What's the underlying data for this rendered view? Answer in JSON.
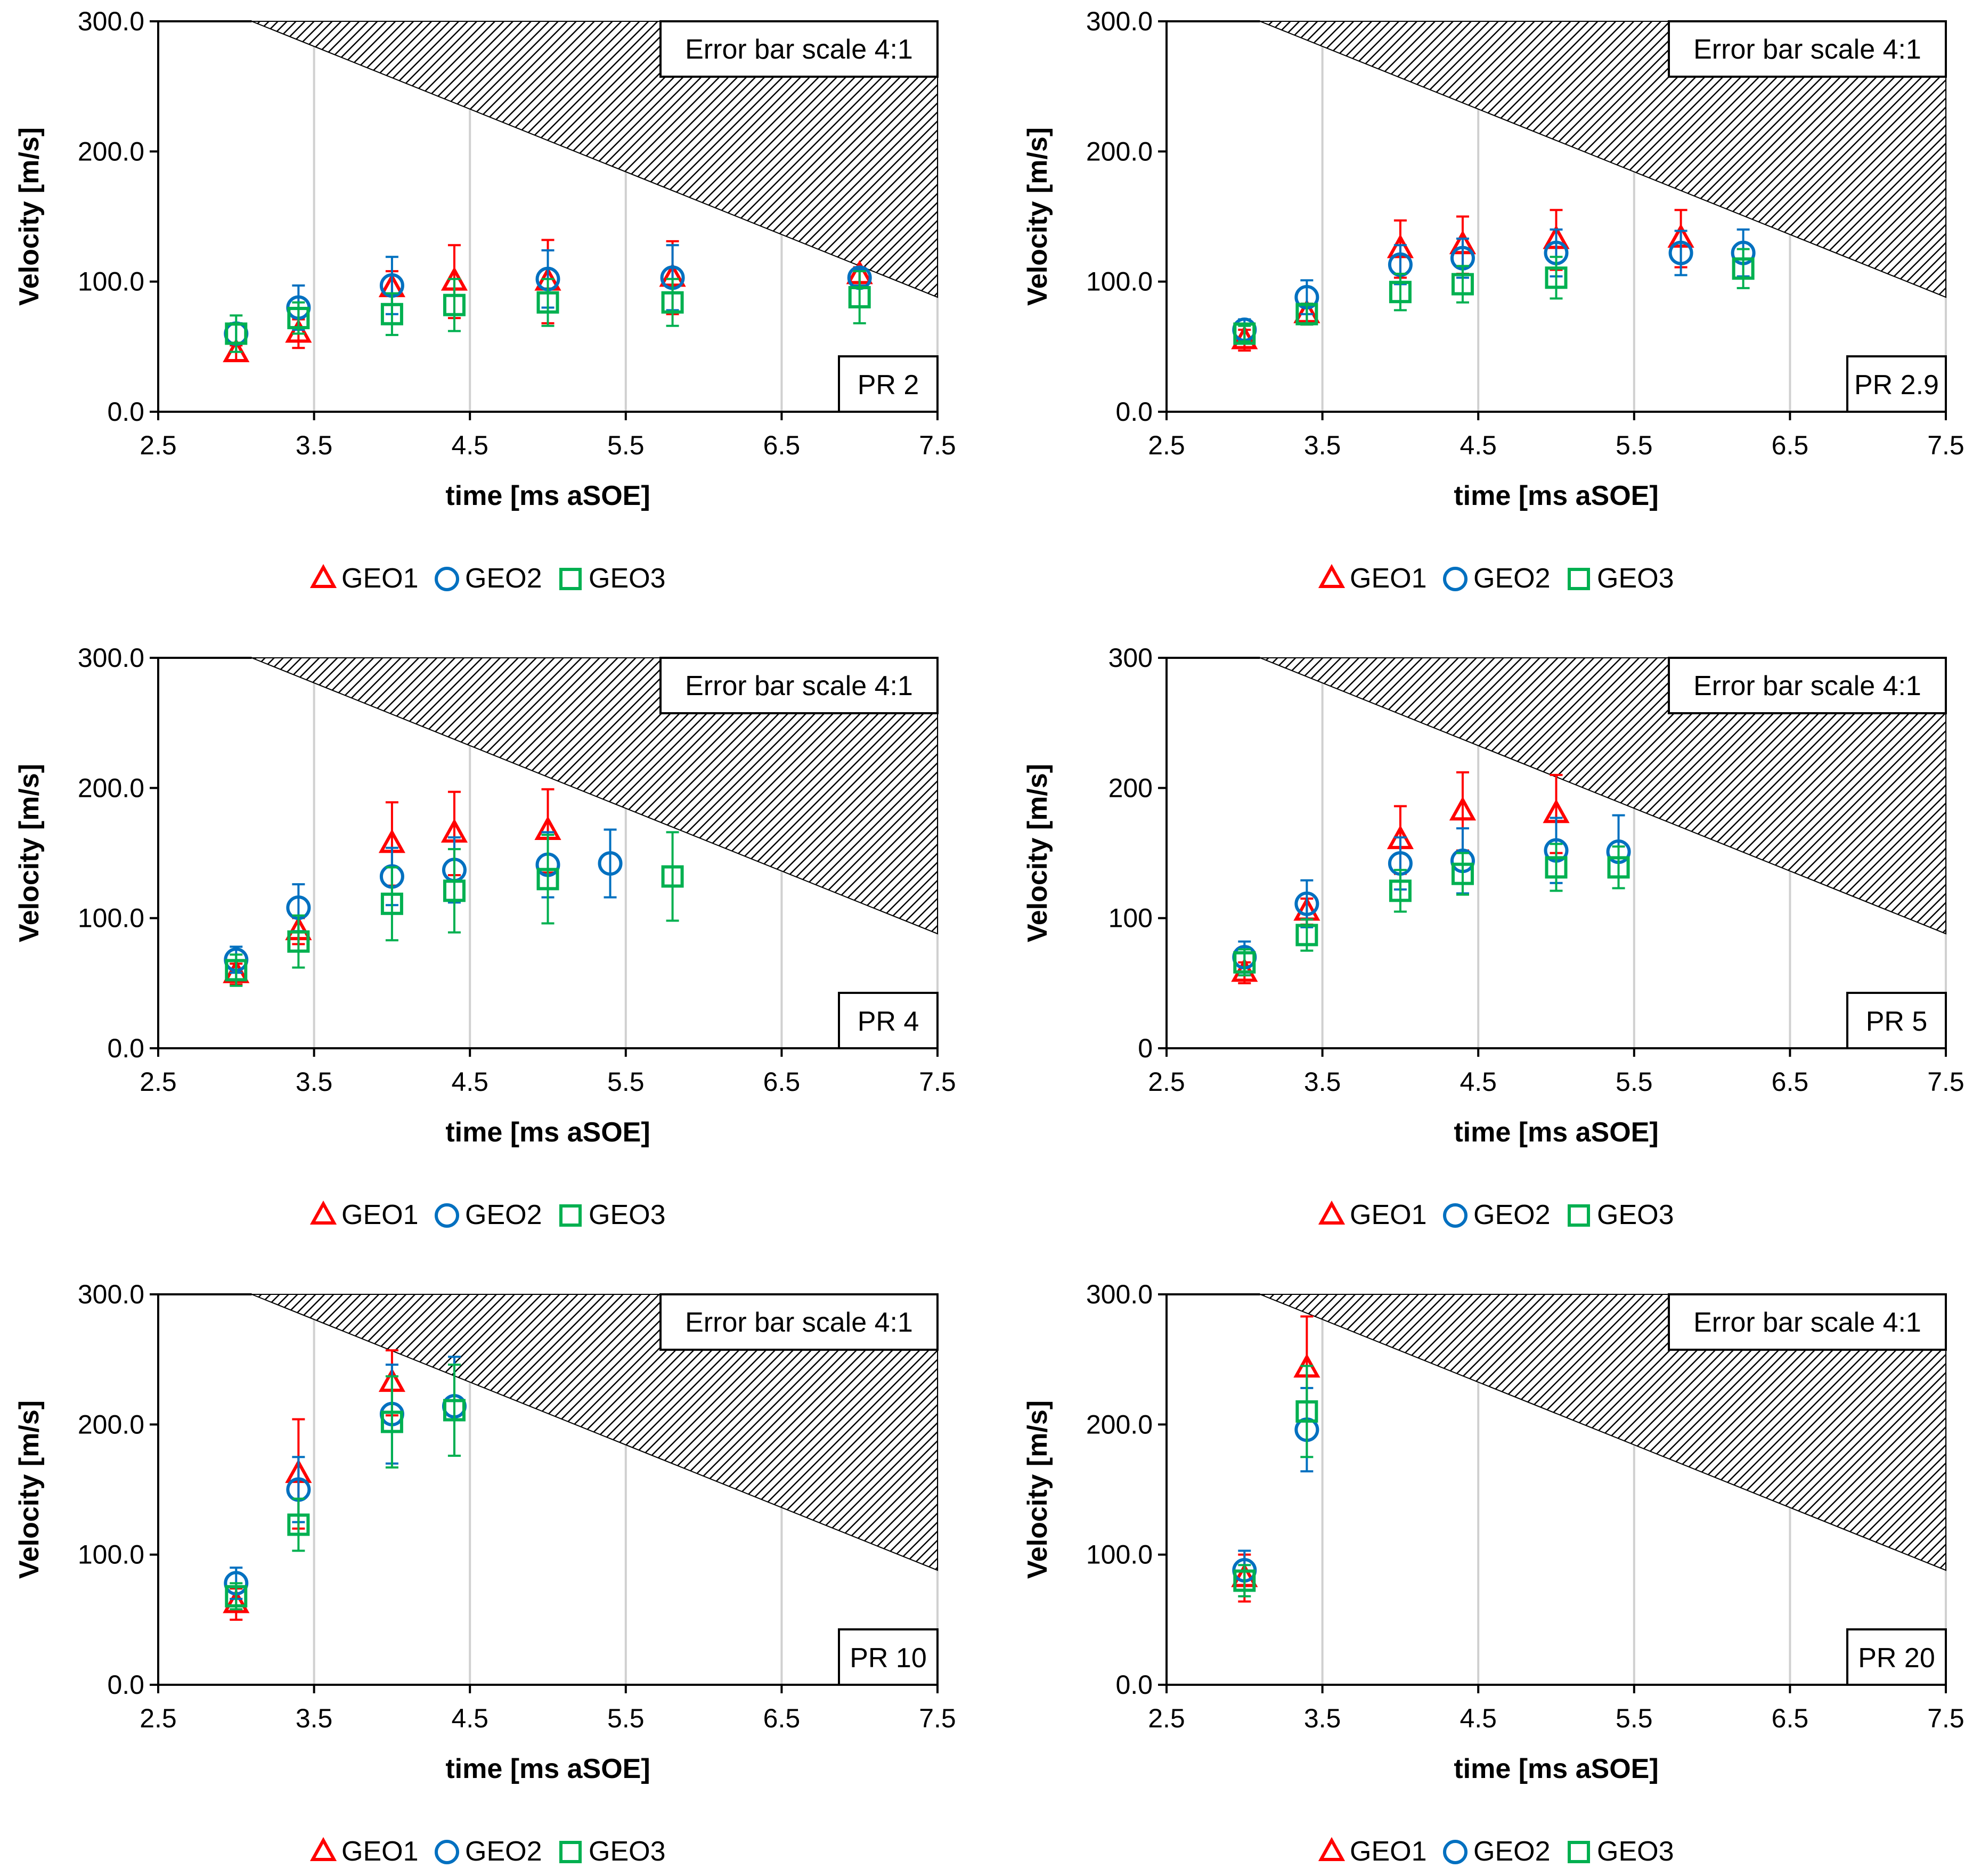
{
  "colors": {
    "GEO1": "#ff0000",
    "GEO2": "#0070c0",
    "GEO3": "#00b050",
    "grid": "#d0d0d0"
  },
  "legend": [
    {
      "name": "GEO1",
      "marker": "triangle"
    },
    {
      "name": "GEO2",
      "marker": "circle"
    },
    {
      "name": "GEO3",
      "marker": "square"
    }
  ],
  "chart_data": [
    {
      "type": "scatter",
      "panel_label": "PR 2",
      "annotation": "Error bar scale 4:1",
      "xlabel": "time [ms aSOE]",
      "ylabel": "Velocity [m/s]",
      "xlim": [
        2.5,
        7.5
      ],
      "ylim": [
        0,
        300
      ],
      "xticks": [
        "2.5",
        "3.5",
        "4.5",
        "5.5",
        "6.5",
        "7.5"
      ],
      "yticks": [
        "0.0",
        "100.0",
        "200.0",
        "300.0"
      ],
      "hatched_region": {
        "top_y": 300,
        "line_from": [
          3.1,
          300
        ],
        "line_to": [
          7.5,
          88
        ]
      },
      "series": [
        {
          "name": "GEO1",
          "points": [
            [
              3.0,
              45,
              6
            ],
            [
              3.4,
              60,
              11
            ],
            [
              4.0,
              95,
              13
            ],
            [
              4.4,
              100,
              28
            ],
            [
              5.0,
              100,
              32
            ],
            [
              5.8,
              103,
              28
            ],
            [
              7.0,
              105,
              6
            ]
          ]
        },
        {
          "name": "GEO2",
          "points": [
            [
              3.0,
              60,
              8
            ],
            [
              3.4,
              80,
              17
            ],
            [
              4.0,
              97,
              22
            ],
            [
              5.0,
              102,
              22
            ],
            [
              5.8,
              103,
              25
            ],
            [
              7.0,
              103,
              6
            ]
          ]
        },
        {
          "name": "GEO3",
          "points": [
            [
              3.0,
              60,
              14
            ],
            [
              3.4,
              72,
              12
            ],
            [
              4.0,
              75,
              16
            ],
            [
              4.4,
              82,
              20
            ],
            [
              5.0,
              84,
              18
            ],
            [
              5.8,
              84,
              18
            ],
            [
              7.0,
              88,
              20
            ]
          ]
        }
      ]
    },
    {
      "type": "scatter",
      "panel_label": "PR 2.9",
      "annotation": "Error bar scale 4:1",
      "xlabel": "time [ms aSOE]",
      "ylabel": "Velocity [m/s]",
      "xlim": [
        2.5,
        7.5
      ],
      "ylim": [
        0,
        300
      ],
      "xticks": [
        "2.5",
        "3.5",
        "4.5",
        "5.5",
        "6.5",
        "7.5"
      ],
      "yticks": [
        "0.0",
        "100.0",
        "200.0",
        "300.0"
      ],
      "hatched_region": {
        "top_y": 300,
        "line_from": [
          3.1,
          300
        ],
        "line_to": [
          7.5,
          88
        ]
      },
      "series": [
        {
          "name": "GEO1",
          "points": [
            [
              3.0,
              55,
              8
            ],
            [
              3.4,
              75,
              8
            ],
            [
              4.0,
              125,
              22
            ],
            [
              4.4,
              128,
              22
            ],
            [
              5.0,
              132,
              23
            ],
            [
              5.8,
              133,
              22
            ]
          ]
        },
        {
          "name": "GEO2",
          "points": [
            [
              3.0,
              63,
              8
            ],
            [
              3.4,
              88,
              13
            ],
            [
              4.0,
              113,
              15
            ],
            [
              4.4,
              118,
              15
            ],
            [
              5.0,
              122,
              18
            ],
            [
              5.8,
              122,
              17
            ],
            [
              6.2,
              122,
              18
            ]
          ]
        },
        {
          "name": "GEO3",
          "points": [
            [
              3.0,
              60,
              6
            ],
            [
              3.4,
              75,
              8
            ],
            [
              4.0,
              92,
              14
            ],
            [
              4.4,
              98,
              14
            ],
            [
              5.0,
              103,
              16
            ],
            [
              6.2,
              110,
              15
            ]
          ]
        }
      ]
    },
    {
      "type": "scatter",
      "panel_label": "PR 4",
      "annotation": "Error bar scale 4:1",
      "xlabel": "time [ms aSOE]",
      "ylabel": "Velocity [m/s]",
      "xlim": [
        2.5,
        7.5
      ],
      "ylim": [
        0,
        300
      ],
      "xticks": [
        "2.5",
        "3.5",
        "4.5",
        "5.5",
        "6.5",
        "7.5"
      ],
      "yticks": [
        "0.0",
        "100.0",
        "200.0",
        "300.0"
      ],
      "hatched_region": {
        "top_y": 300,
        "line_from": [
          3.1,
          300
        ],
        "line_to": [
          7.5,
          88
        ]
      },
      "series": [
        {
          "name": "GEO1",
          "points": [
            [
              3.0,
              57,
              8
            ],
            [
              3.4,
              90,
              10
            ],
            [
              4.0,
              157,
              32
            ],
            [
              4.4,
              165,
              32
            ],
            [
              5.0,
              167,
              32
            ]
          ]
        },
        {
          "name": "GEO2",
          "points": [
            [
              3.0,
              68,
              10
            ],
            [
              3.4,
              108,
              18
            ],
            [
              4.0,
              132,
              22
            ],
            [
              4.4,
              137,
              25
            ],
            [
              5.0,
              141,
              25
            ],
            [
              5.4,
              142,
              26
            ]
          ]
        },
        {
          "name": "GEO3",
          "points": [
            [
              3.0,
              60,
              12
            ],
            [
              3.4,
              82,
              20
            ],
            [
              4.0,
              111,
              28
            ],
            [
              4.4,
              121,
              32
            ],
            [
              5.0,
              130,
              34
            ],
            [
              5.8,
              132,
              34
            ]
          ]
        }
      ]
    },
    {
      "type": "scatter",
      "panel_label": "PR 5",
      "annotation": "Error bar scale 4:1",
      "xlabel": "time [ms aSOE]",
      "ylabel": "Velocity [m/s]",
      "xlim": [
        2.5,
        7.5
      ],
      "ylim": [
        0,
        300
      ],
      "xticks": [
        "2.5",
        "3.5",
        "4.5",
        "5.5",
        "6.5",
        "7.5"
      ],
      "yticks": [
        "0",
        "100",
        "200",
        "300"
      ],
      "hatched_region": {
        "top_y": 300,
        "line_from": [
          3.1,
          300
        ],
        "line_to": [
          7.5,
          88
        ]
      },
      "series": [
        {
          "name": "GEO1",
          "points": [
            [
              3.0,
              58,
              8
            ],
            [
              3.4,
              105,
              10
            ],
            [
              4.0,
              160,
              26
            ],
            [
              4.4,
              182,
              30
            ],
            [
              5.0,
              180,
              30
            ]
          ]
        },
        {
          "name": "GEO2",
          "points": [
            [
              3.0,
              70,
              12
            ],
            [
              3.4,
              111,
              18
            ],
            [
              4.0,
              142,
              20
            ],
            [
              4.4,
              144,
              25
            ],
            [
              5.0,
              152,
              25
            ],
            [
              5.4,
              151,
              28
            ]
          ]
        },
        {
          "name": "GEO3",
          "points": [
            [
              3.0,
              66,
              10
            ],
            [
              3.4,
              87,
              12
            ],
            [
              4.0,
              121,
              16
            ],
            [
              4.4,
              134,
              16
            ],
            [
              5.0,
              139,
              18
            ],
            [
              5.4,
              139,
              16
            ]
          ]
        }
      ]
    },
    {
      "type": "scatter",
      "panel_label": "PR 10",
      "annotation": "Error bar scale 4:1",
      "xlabel": "time [ms aSOE]",
      "ylabel": "Velocity [m/s]",
      "xlim": [
        2.5,
        7.5
      ],
      "ylim": [
        0,
        300
      ],
      "xticks": [
        "2.5",
        "3.5",
        "4.5",
        "5.5",
        "6.5",
        "7.5"
      ],
      "yticks": [
        "0.0",
        "100.0",
        "200.0",
        "300.0"
      ],
      "hatched_region": {
        "top_y": 300,
        "line_from": [
          3.1,
          300
        ],
        "line_to": [
          7.5,
          88
        ]
      },
      "series": [
        {
          "name": "GEO1",
          "points": [
            [
              3.0,
              62,
              12
            ],
            [
              3.4,
              162,
              42
            ],
            [
              4.0,
              232,
              25
            ]
          ]
        },
        {
          "name": "GEO2",
          "points": [
            [
              3.0,
              78,
              12
            ],
            [
              3.4,
              150,
              25
            ],
            [
              4.0,
              208,
              38
            ],
            [
              4.4,
              214,
              38
            ]
          ]
        },
        {
          "name": "GEO3",
          "points": [
            [
              3.0,
              68,
              10
            ],
            [
              3.4,
              123,
              20
            ],
            [
              4.0,
              202,
              35
            ],
            [
              4.4,
              211,
              35
            ]
          ]
        }
      ]
    },
    {
      "type": "scatter",
      "panel_label": "PR 20",
      "annotation": "Error bar scale 4:1",
      "xlabel": "time [ms aSOE]",
      "ylabel": "Velocity [m/s]",
      "xlim": [
        2.5,
        7.5
      ],
      "ylim": [
        0,
        300
      ],
      "xticks": [
        "2.5",
        "3.5",
        "4.5",
        "5.5",
        "6.5",
        "7.5"
      ],
      "yticks": [
        "0.0",
        "100.0",
        "200.0",
        "300.0"
      ],
      "hatched_region": {
        "top_y": 300,
        "line_from": [
          3.1,
          300
        ],
        "line_to": [
          7.5,
          88
        ]
      },
      "series": [
        {
          "name": "GEO1",
          "points": [
            [
              3.0,
              82,
              18
            ],
            [
              3.4,
              243,
              40
            ]
          ]
        },
        {
          "name": "GEO2",
          "points": [
            [
              3.0,
              88,
              15
            ],
            [
              3.4,
              196,
              32
            ]
          ]
        },
        {
          "name": "GEO3",
          "points": [
            [
              3.0,
              80,
              12
            ],
            [
              3.4,
              210,
              35
            ]
          ]
        }
      ]
    }
  ]
}
